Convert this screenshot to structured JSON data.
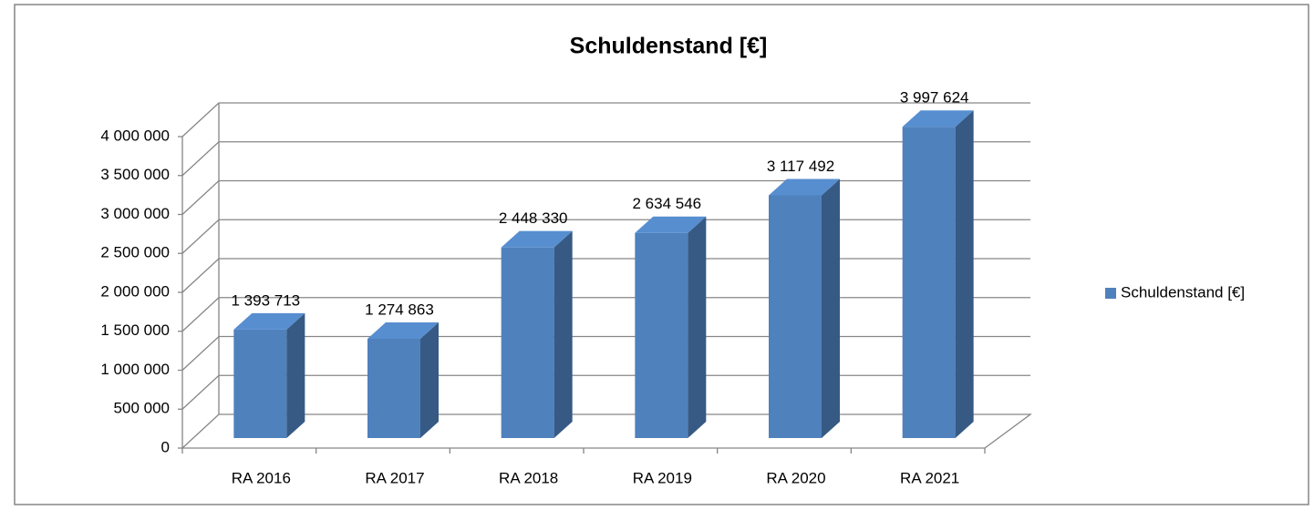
{
  "chart_data": {
    "type": "bar",
    "title": "Schuldenstand [€]",
    "categories": [
      "RA 2016",
      "RA 2017",
      "RA 2018",
      "RA 2019",
      "RA 2020",
      "RA 2021"
    ],
    "series": [
      {
        "name": "Schuldenstand [€]",
        "color": "#4f81bd",
        "values": [
          1393713,
          1274863,
          2448330,
          2634546,
          3117492,
          3997624
        ],
        "value_labels": [
          "1 393 713",
          "1 274 863",
          "2 448 330",
          "2 634 546",
          "3 117 492",
          "3 997 624"
        ]
      }
    ],
    "ylim": [
      0,
      4000000
    ],
    "yticks": [
      0,
      {
        "value": 500000,
        "label": "500 000"
      },
      {
        "value": 1000000,
        "label": "1 000 000"
      },
      {
        "value": 1500000,
        "label": "1 500 000"
      },
      {
        "value": 2000000,
        "label": "2 000 000"
      },
      {
        "value": 2500000,
        "label": "2 500 000"
      },
      {
        "value": 3000000,
        "label": "3 000 000"
      },
      {
        "value": 3500000,
        "label": "3 500 000"
      },
      {
        "value": 4000000,
        "label": "4 000 000"
      }
    ],
    "grid": true,
    "legend": "right"
  }
}
